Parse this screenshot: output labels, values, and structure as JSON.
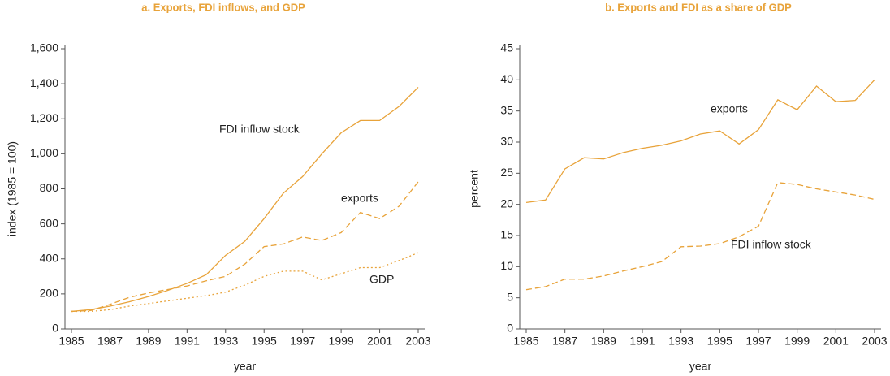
{
  "chart_data": [
    {
      "type": "line",
      "title": "a. Exports, FDI inflows, and GDP",
      "y_label": "index (1985 = 100)",
      "x_label": "year",
      "x": [
        1985,
        1986,
        1987,
        1988,
        1989,
        1990,
        1991,
        1992,
        1993,
        1994,
        1995,
        1996,
        1997,
        1998,
        1999,
        2000,
        2001,
        2002,
        2003
      ],
      "xlim": [
        1985,
        2003
      ],
      "xticks": [
        1985,
        1987,
        1989,
        1991,
        1993,
        1995,
        1997,
        1999,
        2001,
        2003
      ],
      "ylim": [
        0,
        1600
      ],
      "yticks": [
        0,
        200,
        400,
        600,
        800,
        {
          "value": 1000,
          "label": "1,000"
        },
        {
          "value": 1200,
          "label": "1,200"
        },
        {
          "value": 1400,
          "label": "1,400"
        },
        {
          "value": 1600,
          "label": "1,600"
        }
      ],
      "series": [
        {
          "name": "FDI inflow stock",
          "color": "#e8a33a",
          "style": "solid",
          "values": [
            100,
            110,
            130,
            155,
            185,
            220,
            260,
            310,
            420,
            500,
            630,
            775,
            870,
            1000,
            1120,
            1190,
            1190,
            1270,
            1380
          ]
        },
        {
          "name": "exports",
          "color": "#e8a33a",
          "style": "dashed",
          "values": [
            100,
            105,
            140,
            180,
            205,
            225,
            245,
            275,
            300,
            370,
            470,
            485,
            525,
            505,
            550,
            665,
            630,
            700,
            840
          ]
        },
        {
          "name": "GDP",
          "color": "#e8a33a",
          "style": "dotted",
          "values": [
            100,
            100,
            110,
            130,
            145,
            160,
            175,
            190,
            210,
            250,
            300,
            330,
            330,
            280,
            315,
            350,
            350,
            390,
            435
          ]
        }
      ]
    },
    {
      "type": "line",
      "title": "b. Exports and FDI as a share of GDP",
      "y_label": "percent",
      "x_label": "year",
      "x": [
        1985,
        1986,
        1987,
        1988,
        1989,
        1990,
        1991,
        1992,
        1993,
        1994,
        1995,
        1996,
        1997,
        1998,
        1999,
        2000,
        2001,
        2002,
        2003
      ],
      "xlim": [
        1985,
        2003
      ],
      "xticks": [
        1985,
        1987,
        1989,
        1991,
        1993,
        1995,
        1997,
        1999,
        2001,
        2003
      ],
      "ylim": [
        0,
        45
      ],
      "yticks": [
        0,
        5,
        10,
        15,
        20,
        25,
        30,
        35,
        40,
        45
      ],
      "series": [
        {
          "name": "exports",
          "color": "#e8a33a",
          "style": "solid",
          "values": [
            20.3,
            20.7,
            25.7,
            27.5,
            27.3,
            28.3,
            29,
            29.5,
            30.2,
            31.3,
            31.8,
            29.7,
            32,
            36.8,
            35.2,
            39,
            36.5,
            36.7,
            40
          ]
        },
        {
          "name": "FDI inflow stock",
          "color": "#e8a33a",
          "style": "dashed",
          "values": [
            6.3,
            6.8,
            8,
            8,
            8.5,
            9.3,
            10,
            10.8,
            13.2,
            13.3,
            13.7,
            14.8,
            16.5,
            23.5,
            23.2,
            22.5,
            22,
            21.5,
            20.8
          ]
        }
      ]
    }
  ]
}
